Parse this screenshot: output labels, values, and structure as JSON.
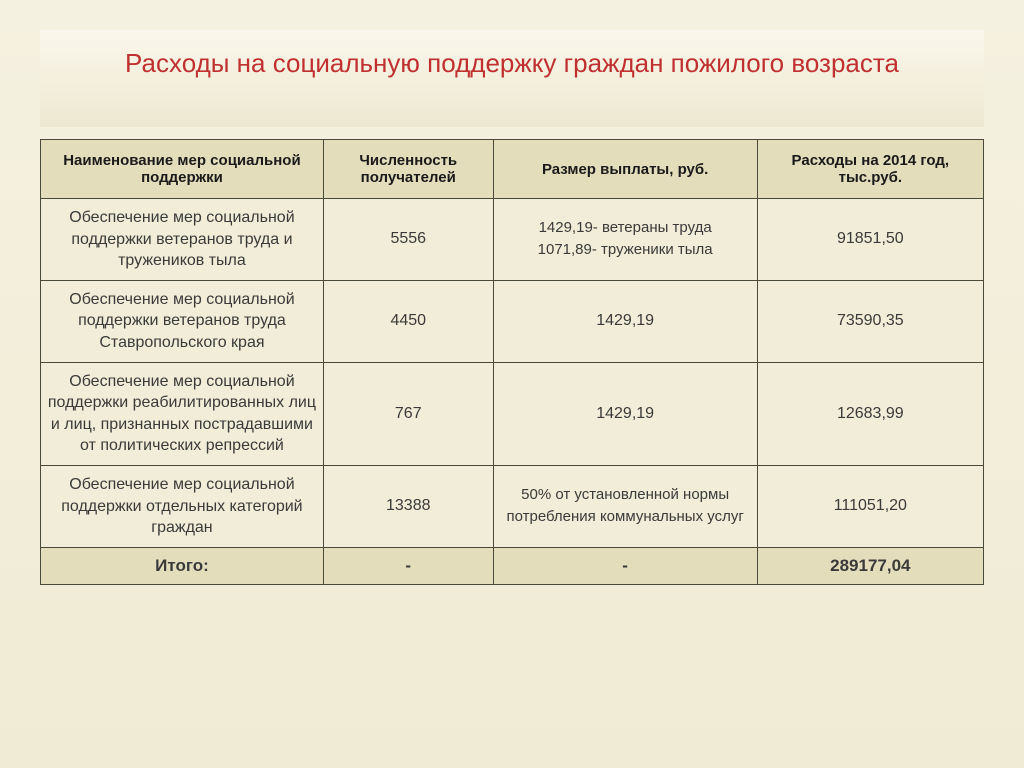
{
  "title": "Расходы на социальную поддержку граждан пожилого возраста",
  "headers": {
    "name": "Наименование мер социальной поддержки",
    "count": "Численность получателей",
    "payment": "Размер выплаты, руб.",
    "expense": "Расходы на 2014 год, тыс.руб."
  },
  "rows": [
    {
      "name": "Обеспечение мер социальной поддержки ветеранов труда и тружеников тыла",
      "count": "5556",
      "payment_line1": "1429,19- ветераны труда",
      "payment_line2": "1071,89- труженики тыла",
      "expense": "91851,50"
    },
    {
      "name": "Обеспечение мер социальной поддержки ветеранов труда Ставропольского края",
      "count": "4450",
      "payment": "1429,19",
      "expense": "73590,35"
    },
    {
      "name": "Обеспечение мер социальной поддержки реабилитированных лиц и лиц, признанных пострадавшими от политических репрессий",
      "count": "767",
      "payment": "1429,19",
      "expense": "12683,99"
    },
    {
      "name": "Обеспечение мер социальной поддержки отдельных категорий граждан",
      "count": "13388",
      "payment": "50% от установленной нормы потребления коммунальных услуг",
      "expense": "111051,20"
    }
  ],
  "total": {
    "label": "Итого:",
    "count": "-",
    "payment": "-",
    "expense": "289177,04"
  },
  "colors": {
    "title_color": "#c03030",
    "header_bg": "#e4ddbb",
    "cell_bg": "#f2edd8",
    "border": "#4a4a3a",
    "body_bg": "#f0ebd4"
  },
  "table_style": {
    "title_fontsize": 26,
    "header_fontsize": 15,
    "cell_fontsize": 16,
    "col_widths_pct": [
      30,
      18,
      28,
      24
    ]
  }
}
